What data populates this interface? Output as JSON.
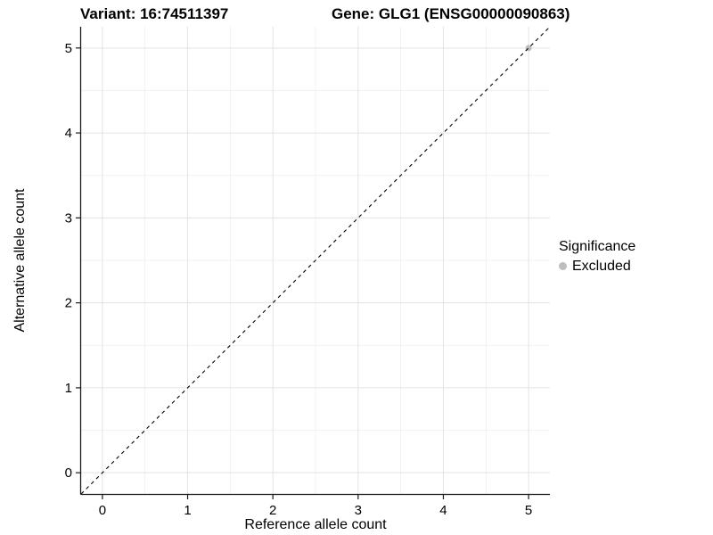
{
  "titles": {
    "variant": "Variant: 16:74511397",
    "gene": "Gene: GLG1 (ENSG00000090863)"
  },
  "chart_data": {
    "type": "scatter",
    "title": "Variant: 16:74511397 / Gene: GLG1 (ENSG00000090863)",
    "xlabel": "Reference allele count",
    "ylabel": "Alternative allele count",
    "xlim": [
      -0.25,
      5.25
    ],
    "ylim": [
      -0.25,
      5.25
    ],
    "x_ticks": [
      0,
      1,
      2,
      3,
      4,
      5
    ],
    "y_ticks": [
      0,
      1,
      2,
      3,
      4,
      5
    ],
    "minor_step": 0.5,
    "grid": true,
    "points": [
      {
        "x": 5,
        "y": 5,
        "significance": "Excluded"
      }
    ],
    "abline": {
      "slope": 1,
      "intercept": 0,
      "style": "dashed"
    },
    "legend": {
      "title": "Significance",
      "position": "right",
      "items": [
        {
          "label": "Excluded",
          "color": "#bdbdbd"
        }
      ]
    },
    "colors": {
      "grid_major": "#e3e3e3",
      "grid_minor": "#f0f0f0",
      "axis_line": "#1a1a1a",
      "abline": "#000000",
      "text": "#000000"
    }
  }
}
